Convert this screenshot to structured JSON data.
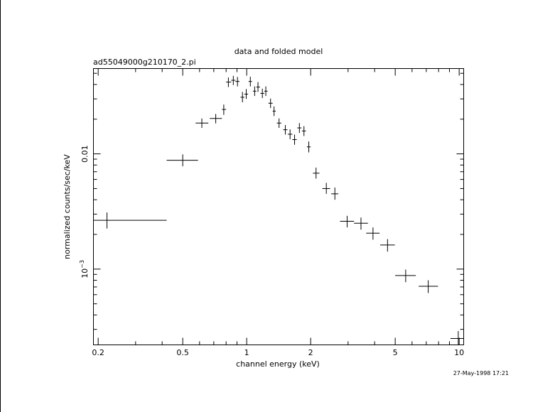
{
  "chart_data": {
    "type": "scatter",
    "title": "data and folded model",
    "subtitle": "ad55049000g210170_2.pi",
    "xlabel": "channel energy (keV)",
    "ylabel": "normalized counts/sec/keV",
    "timestamp": "27-May-1998 17:21",
    "x_scale": "log",
    "y_scale": "log",
    "xlim": [
      0.19,
      10.5
    ],
    "ylim": [
      0.00022,
      0.055
    ],
    "x_ticks": [
      {
        "value": 0.2,
        "label": "0.2"
      },
      {
        "value": 0.5,
        "label": "0.5"
      },
      {
        "value": 1,
        "label": "1"
      },
      {
        "value": 2,
        "label": "2"
      },
      {
        "value": 5,
        "label": "5"
      },
      {
        "value": 10,
        "label": "10"
      }
    ],
    "y_ticks": [
      {
        "value": 0.01,
        "label": "0.01"
      },
      {
        "value": 0.001,
        "label": "10",
        "sup": "−3"
      }
    ],
    "grid": false,
    "points": [
      {
        "x": 0.22,
        "xlo": 0.19,
        "xhi": 0.42,
        "y": 0.00265,
        "ylo": 0.00225,
        "yhi": 0.0031
      },
      {
        "x": 0.5,
        "xlo": 0.42,
        "xhi": 0.59,
        "y": 0.0088,
        "ylo": 0.0078,
        "yhi": 0.0099
      },
      {
        "x": 0.615,
        "xlo": 0.575,
        "xhi": 0.66,
        "y": 0.0185,
        "ylo": 0.0168,
        "yhi": 0.0203
      },
      {
        "x": 0.715,
        "xlo": 0.67,
        "xhi": 0.765,
        "y": 0.0203,
        "ylo": 0.0184,
        "yhi": 0.0222
      },
      {
        "x": 0.78,
        "xlo": 0.765,
        "xhi": 0.8,
        "y": 0.0243,
        "ylo": 0.0218,
        "yhi": 0.0268
      },
      {
        "x": 0.82,
        "xlo": 0.8,
        "xhi": 0.845,
        "y": 0.042,
        "ylo": 0.038,
        "yhi": 0.046
      },
      {
        "x": 0.865,
        "xlo": 0.845,
        "xhi": 0.885,
        "y": 0.0435,
        "ylo": 0.0395,
        "yhi": 0.0475
      },
      {
        "x": 0.905,
        "xlo": 0.885,
        "xhi": 0.925,
        "y": 0.0425,
        "ylo": 0.0385,
        "yhi": 0.0465
      },
      {
        "x": 0.955,
        "xlo": 0.935,
        "xhi": 0.975,
        "y": 0.031,
        "ylo": 0.028,
        "yhi": 0.0345
      },
      {
        "x": 0.995,
        "xlo": 0.975,
        "xhi": 1.015,
        "y": 0.033,
        "ylo": 0.03,
        "yhi": 0.0365
      },
      {
        "x": 1.04,
        "xlo": 1.02,
        "xhi": 1.06,
        "y": 0.0425,
        "ylo": 0.0385,
        "yhi": 0.0468
      },
      {
        "x": 1.09,
        "xlo": 1.07,
        "xhi": 1.11,
        "y": 0.035,
        "ylo": 0.0318,
        "yhi": 0.0385
      },
      {
        "x": 1.13,
        "xlo": 1.11,
        "xhi": 1.155,
        "y": 0.038,
        "ylo": 0.0345,
        "yhi": 0.042
      },
      {
        "x": 1.185,
        "xlo": 1.16,
        "xhi": 1.21,
        "y": 0.0335,
        "ylo": 0.0305,
        "yhi": 0.0368
      },
      {
        "x": 1.23,
        "xlo": 1.21,
        "xhi": 1.255,
        "y": 0.035,
        "ylo": 0.0318,
        "yhi": 0.0385
      },
      {
        "x": 1.295,
        "xlo": 1.265,
        "xhi": 1.325,
        "y": 0.0275,
        "ylo": 0.025,
        "yhi": 0.0302
      },
      {
        "x": 1.345,
        "xlo": 1.325,
        "xhi": 1.37,
        "y": 0.0235,
        "ylo": 0.0213,
        "yhi": 0.0258
      },
      {
        "x": 1.42,
        "xlo": 1.385,
        "xhi": 1.455,
        "y": 0.0185,
        "ylo": 0.0168,
        "yhi": 0.0203
      },
      {
        "x": 1.52,
        "xlo": 1.485,
        "xhi": 1.555,
        "y": 0.0162,
        "ylo": 0.0147,
        "yhi": 0.0178
      },
      {
        "x": 1.6,
        "xlo": 1.56,
        "xhi": 1.64,
        "y": 0.0148,
        "ylo": 0.0134,
        "yhi": 0.0163
      },
      {
        "x": 1.68,
        "xlo": 1.64,
        "xhi": 1.72,
        "y": 0.0133,
        "ylo": 0.012,
        "yhi": 0.0147
      },
      {
        "x": 1.77,
        "xlo": 1.73,
        "xhi": 1.81,
        "y": 0.0168,
        "ylo": 0.0152,
        "yhi": 0.0185
      },
      {
        "x": 1.86,
        "xlo": 1.82,
        "xhi": 1.9,
        "y": 0.0158,
        "ylo": 0.0143,
        "yhi": 0.0174
      },
      {
        "x": 1.96,
        "xlo": 1.92,
        "xhi": 2.0,
        "y": 0.0115,
        "ylo": 0.0103,
        "yhi": 0.0128
      },
      {
        "x": 2.12,
        "xlo": 2.05,
        "xhi": 2.2,
        "y": 0.0068,
        "ylo": 0.0061,
        "yhi": 0.0076
      },
      {
        "x": 2.37,
        "xlo": 2.27,
        "xhi": 2.47,
        "y": 0.005,
        "ylo": 0.0045,
        "yhi": 0.0056
      },
      {
        "x": 2.6,
        "xlo": 2.5,
        "xhi": 2.7,
        "y": 0.0045,
        "ylo": 0.004,
        "yhi": 0.0051
      },
      {
        "x": 2.97,
        "xlo": 2.75,
        "xhi": 3.2,
        "y": 0.0026,
        "ylo": 0.0023,
        "yhi": 0.0029
      },
      {
        "x": 3.45,
        "xlo": 3.2,
        "xhi": 3.72,
        "y": 0.0025,
        "ylo": 0.0022,
        "yhi": 0.0028
      },
      {
        "x": 3.93,
        "xlo": 3.65,
        "xhi": 4.22,
        "y": 0.00205,
        "ylo": 0.0018,
        "yhi": 0.0023
      },
      {
        "x": 4.6,
        "xlo": 4.25,
        "xhi": 4.98,
        "y": 0.00162,
        "ylo": 0.00142,
        "yhi": 0.00182
      },
      {
        "x": 5.6,
        "xlo": 5.0,
        "xhi": 6.25,
        "y": 0.00088,
        "ylo": 0.00077,
        "yhi": 0.00099
      },
      {
        "x": 7.15,
        "xlo": 6.45,
        "xhi": 7.95,
        "y": 0.00071,
        "ylo": 0.00062,
        "yhi": 0.0008
      },
      {
        "x": 9.9,
        "xlo": 9.1,
        "xhi": 10.5,
        "y": 0.00025,
        "ylo": 0.00022,
        "yhi": 0.00029
      }
    ]
  }
}
